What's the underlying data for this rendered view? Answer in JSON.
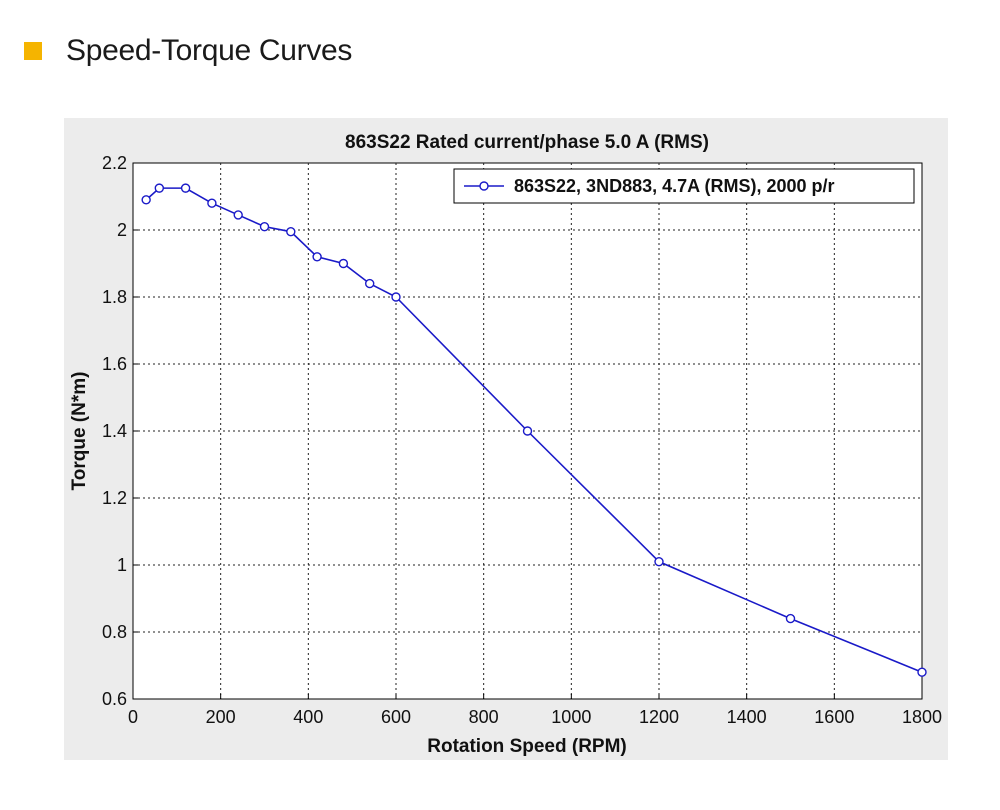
{
  "header": {
    "title": "Speed-Torque Curves",
    "marker_color": "#f5b400"
  },
  "chart_data": {
    "type": "line",
    "title": "863S22 Rated current/phase 5.0 A (RMS)",
    "xlabel": "Rotation Speed (RPM)",
    "ylabel": "Torque (N*m)",
    "xlim": [
      0,
      1800
    ],
    "ylim": [
      0.6,
      2.2
    ],
    "xticks": [
      0,
      200,
      400,
      600,
      800,
      1000,
      1200,
      1400,
      1600,
      1800
    ],
    "yticks": [
      0.6,
      0.8,
      1,
      1.2,
      1.4,
      1.6,
      1.8,
      2,
      2.2
    ],
    "xtick_labels": [
      "0",
      "200",
      "400",
      "600",
      "800",
      "1000",
      "1200",
      "1400",
      "1600",
      "1800"
    ],
    "ytick_labels": [
      "0.6",
      "0.8",
      "1",
      "1.2",
      "1.4",
      "1.6",
      "1.8",
      "2",
      "2.2"
    ],
    "grid": true,
    "legend_position": "top-right",
    "series": [
      {
        "name": "863S22, 3ND883, 4.7A (RMS), 2000 p/r",
        "color": "#1a1ac8",
        "marker": "circle",
        "x": [
          30,
          60,
          120,
          180,
          240,
          300,
          360,
          420,
          480,
          540,
          600,
          900,
          1200,
          1500,
          1800
        ],
        "y": [
          2.09,
          2.125,
          2.125,
          2.08,
          2.045,
          2.01,
          1.995,
          1.92,
          1.9,
          1.84,
          1.8,
          1.4,
          1.01,
          0.84,
          0.68
        ]
      }
    ]
  }
}
